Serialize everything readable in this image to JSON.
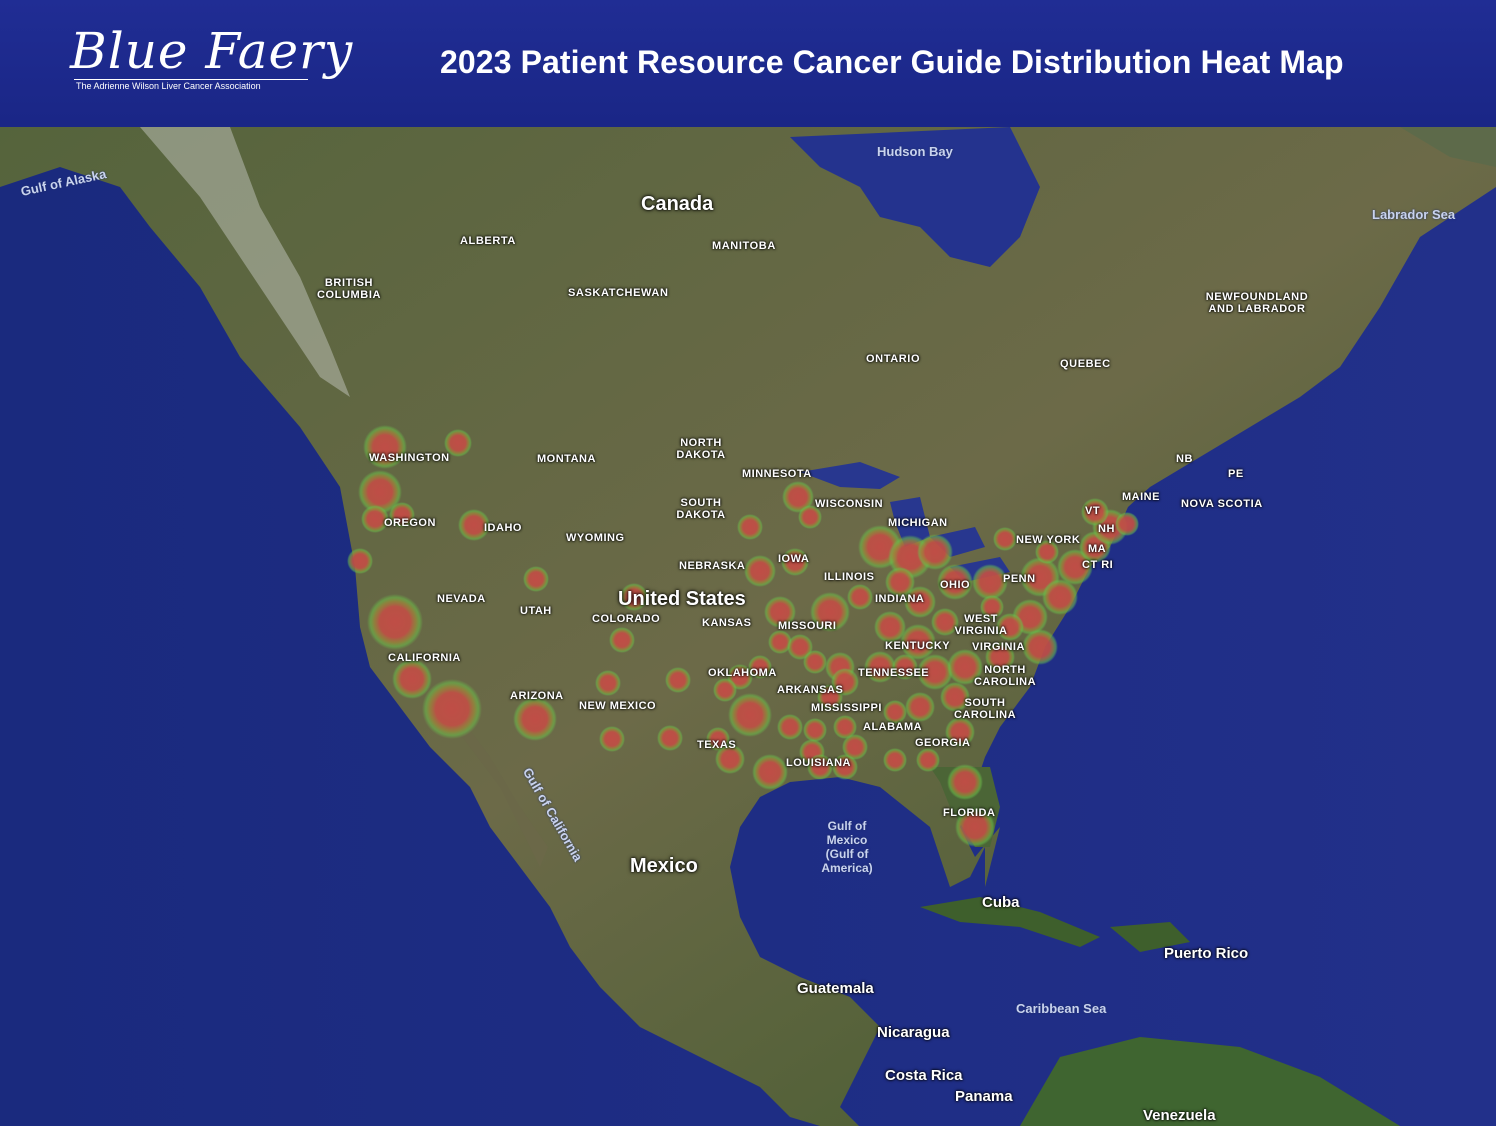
{
  "header": {
    "logo_text": "Blue Faery",
    "logo_tagline": "The Adrienne Wilson Liver Cancer Association",
    "title": "2023 Patient Resource Cancer Guide Distribution Heat Map"
  },
  "colors": {
    "header_bg": "#1f2b90",
    "ocean": "#1e2d82",
    "land": "#4a5a34",
    "heat_core": "#c0504a",
    "heat_halo": "#6cc04a"
  },
  "map": {
    "water_labels": {
      "gulf_of_alaska": "Gulf of Alaska",
      "hudson_bay": "Hudson Bay",
      "labrador_sea": "Labrador Sea",
      "gulf_of_california": "Gulf of California",
      "gulf_of_mexico": "Gulf of Mexico (Gulf of America)",
      "caribbean_sea": "Caribbean Sea"
    },
    "countries": {
      "canada": "Canada",
      "united_states": "United States",
      "mexico": "Mexico",
      "cuba": "Cuba",
      "guatemala": "Guatemala",
      "nicaragua": "Nicaragua",
      "costa_rica": "Costa Rica",
      "panama": "Panama",
      "venezuela": "Venezuela",
      "puerto_rico": "Puerto Rico"
    },
    "provinces": {
      "british_columbia": "BRITISH COLUMBIA",
      "alberta": "ALBERTA",
      "saskatchewan": "SASKATCHEWAN",
      "manitoba": "MANITOBA",
      "ontario": "ONTARIO",
      "quebec": "QUEBEC",
      "newfoundland": "NEWFOUNDLAND AND LABRADOR",
      "nb": "NB",
      "pe": "PE",
      "nova_scotia": "NOVA SCOTIA"
    },
    "states": {
      "washington": "WASHINGTON",
      "oregon": "OREGON",
      "idaho": "IDAHO",
      "montana": "MONTANA",
      "wyoming": "WYOMING",
      "nevada": "NEVADA",
      "utah": "UTAH",
      "colorado": "COLORADO",
      "california": "CALIFORNIA",
      "arizona": "ARIZONA",
      "new_mexico": "NEW MEXICO",
      "north_dakota": "NORTH DAKOTA",
      "south_dakota": "SOUTH DAKOTA",
      "nebraska": "NEBRASKA",
      "kansas": "KANSAS",
      "oklahoma": "OKLAHOMA",
      "texas": "TEXAS",
      "minnesota": "MINNESOTA",
      "iowa": "IOWA",
      "missouri": "MISSOURI",
      "arkansas": "ARKANSAS",
      "louisiana": "LOUISIANA",
      "wisconsin": "WISCONSIN",
      "illinois": "ILLINOIS",
      "michigan": "MICHIGAN",
      "indiana": "INDIANA",
      "ohio": "OHIO",
      "kentucky": "KENTUCKY",
      "tennessee": "TENNESSEE",
      "mississippi": "MISSISSIPPI",
      "alabama": "ALABAMA",
      "georgia": "GEORGIA",
      "florida": "FLORIDA",
      "south_carolina": "SOUTH CAROLINA",
      "north_carolina": "NORTH CAROLINA",
      "virginia": "VIRGINIA",
      "west_virginia": "WEST VIRGINIA",
      "pennsylvania": "PENN",
      "new_york": "NEW YORK",
      "maine": "MAINE",
      "vt": "VT",
      "nh": "NH",
      "ma": "MA",
      "ct_ri": "CT RI"
    }
  }
}
